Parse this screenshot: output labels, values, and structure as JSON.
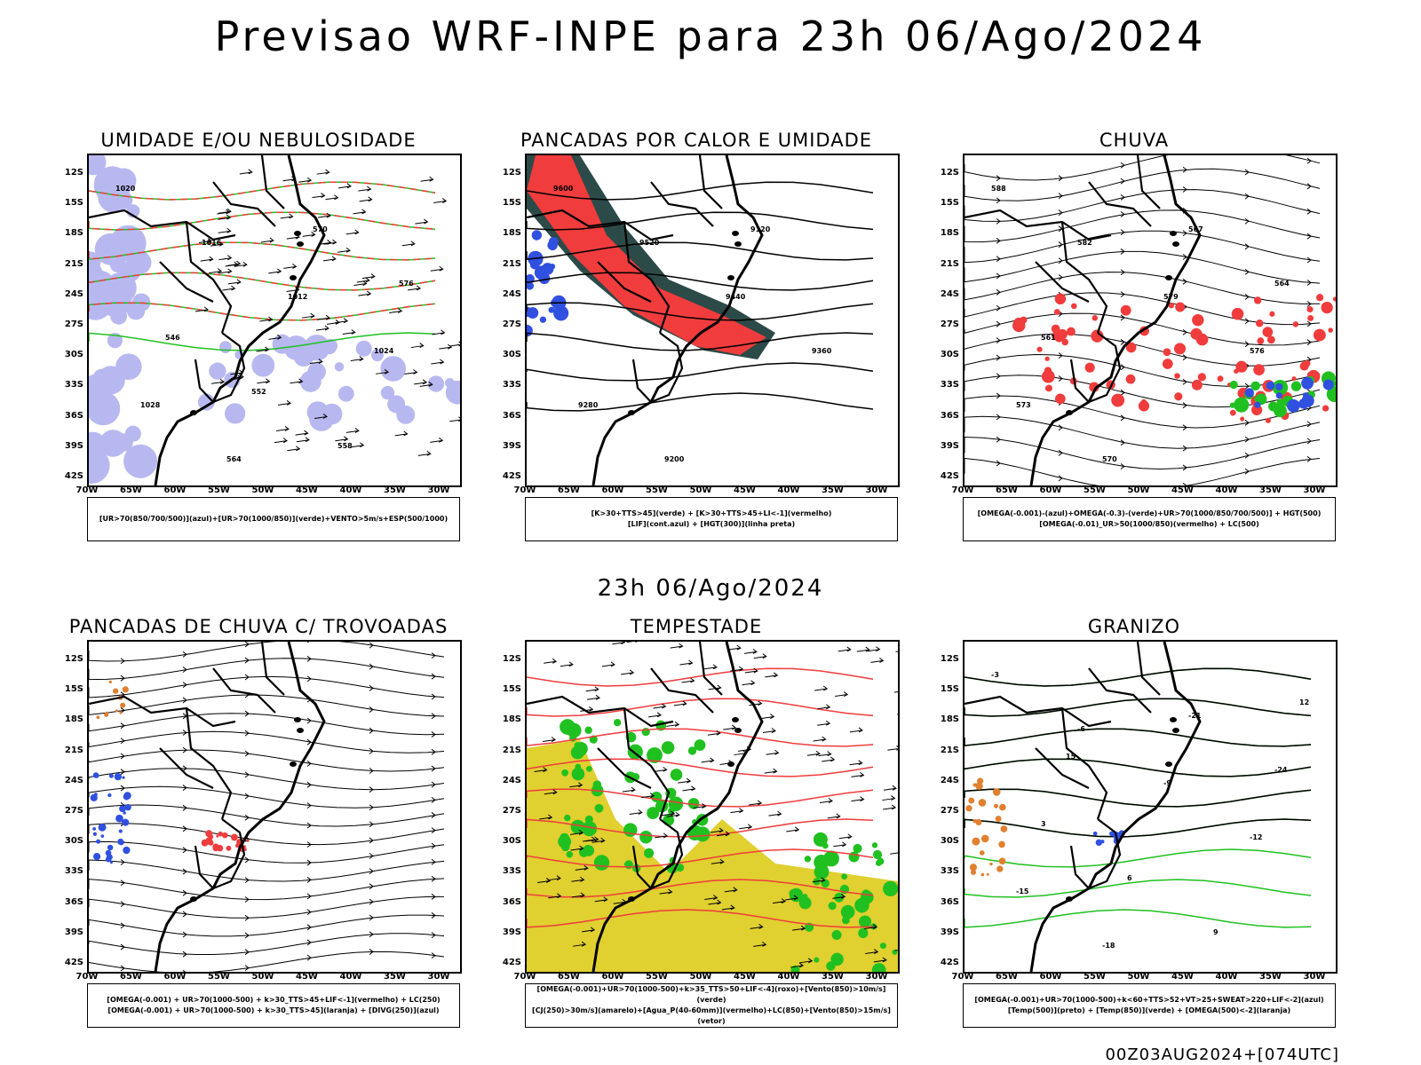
{
  "header": {
    "title": "Previsao WRF-INPE  para 23h 06/Ago/2024"
  },
  "subheader": {
    "time": "23h 06/Ago/2024"
  },
  "footer": {
    "run": "00Z03AUG2024+[074UTC]"
  },
  "axes": {
    "lat_labels": [
      "12S",
      "15S",
      "18S",
      "21S",
      "24S",
      "27S",
      "30S",
      "33S",
      "36S",
      "39S",
      "42S"
    ],
    "lon_labels": [
      "70W",
      "65W",
      "60W",
      "55W",
      "50W",
      "45W",
      "40W",
      "35W",
      "30W"
    ]
  },
  "panels": [
    {
      "id": "umidade",
      "title": "UMIDADE E/OU NEBULOSIDADE",
      "legend": [
        "[UR>70(850/700/500)](azul)+[UR>70(1000/850)](verde)+VENTO>5m/s+ESP(500/1000)"
      ],
      "contour_labels": [
        "1020",
        "1016",
        "1012",
        "1024",
        "1028",
        "564",
        "570",
        "576",
        "546",
        "552",
        "558"
      ]
    },
    {
      "id": "pancadas-calor",
      "title": "PANCADAS POR CALOR E UMIDADE",
      "legend": [
        "[K>30+TTS>45](verde) + [K>30+TTS>45+LI<-1](vermelho)",
        "[LIF](cont.azul) + [HGT(300)](linha preta)"
      ],
      "contour_labels": [
        "9600",
        "9520",
        "9440",
        "9360",
        "9280",
        "9200",
        "9120"
      ]
    },
    {
      "id": "chuva",
      "title": "CHUVA",
      "legend": [
        "[OMEGA(-0.001)-(azul)+OMEGA(-0.3)-(verde)+UR>70(1000/850/700/500)] + HGT(500)",
        "[OMEGA(-0.01)_UR>50(1000/850)(vermelho) + LC(500)"
      ],
      "contour_labels": [
        "588",
        "582",
        "579",
        "576",
        "573",
        "570",
        "567",
        "564",
        "561"
      ]
    },
    {
      "id": "trovoadas",
      "title": "PANCADAS DE CHUVA C/ TROVOADAS",
      "legend": [
        "[OMEGA(-0.001) + UR>70(1000-500) + k>30_TTS>45+LIF<-1](vermelho) + LC(250)",
        "[OMEGA(-0.001) + UR>70(1000-500) + k>30_TTS>45](laranja) + [DIVG(250)](azul)"
      ],
      "contour_labels": []
    },
    {
      "id": "tempestade",
      "title": "TEMPESTADE",
      "legend": [
        "[OMEGA(-0.001)+UR>70(1000-500)+k>35_TTS>50+LIF<-4](roxo)+[Vento(850)>10m/s](verde)",
        "[CJ(250)>30m/s](amarelo)+[Agua_P(40-60mm)](vermelho)+LC(850)+[Vento(850)>15m/s](vetor)"
      ],
      "contour_labels": []
    },
    {
      "id": "granizo",
      "title": "GRANIZO",
      "legend": [
        "[OMEGA(-0.001)+UR>70(1000-500)+k<60+TTS>52+VT>25+SWEAT>220+LIF<-2](azul)",
        "[Temp(500)](preto) + [Temp(850)](verde) + [OMEGA(500)<-2](laranja)"
      ],
      "contour_labels": [
        "-3",
        "-6",
        "-9",
        "-12",
        "-15",
        "-18",
        "-21",
        "-24",
        "3",
        "6",
        "9",
        "12",
        "15"
      ]
    }
  ],
  "colors": {
    "blue": "#3050e0",
    "green": "#20c020",
    "red": "#f03c3c",
    "orange": "#e08030",
    "yellow": "#e0d030",
    "darkteal": "#2c4a48",
    "lavender": "#b8b8f0"
  }
}
